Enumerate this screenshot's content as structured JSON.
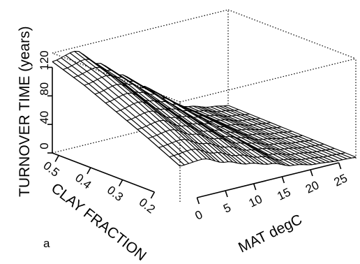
{
  "figure": {
    "panel_label": "a"
  },
  "chart_data": {
    "type": "surface3d",
    "title": "",
    "xlabel": "MAT degC",
    "ylabel": "CLAY FRACTION",
    "zlabel": "TURNOVER TIME (years)",
    "x_ticks": [
      "0",
      "5",
      "10",
      "15",
      "20",
      "25"
    ],
    "y_ticks": [
      "0.5",
      "0.4",
      "0.3",
      "0.2"
    ],
    "z_ticks": [
      "0",
      "40",
      "80",
      "120"
    ],
    "x_range": [
      -3,
      28
    ],
    "y_range": [
      0.12,
      0.52
    ],
    "z_range": [
      0,
      140
    ],
    "grid": false,
    "legend": "none",
    "surface": {
      "mat_degc": [
        -3,
        1,
        5,
        9,
        13,
        17,
        21,
        25,
        28
      ],
      "clay_fraction": [
        0.12,
        0.22,
        0.32,
        0.42,
        0.52
      ],
      "turnover_years": [
        [
          50,
          52,
          40,
          30,
          22,
          12,
          6,
          3,
          2
        ],
        [
          72,
          76,
          62,
          48,
          34,
          18,
          10,
          5,
          3
        ],
        [
          92,
          98,
          80,
          62,
          44,
          24,
          13,
          7,
          4
        ],
        [
          112,
          118,
          98,
          76,
          54,
          30,
          16,
          8,
          5
        ],
        [
          128,
          135,
          110,
          86,
          62,
          34,
          18,
          10,
          6
        ]
      ]
    }
  }
}
